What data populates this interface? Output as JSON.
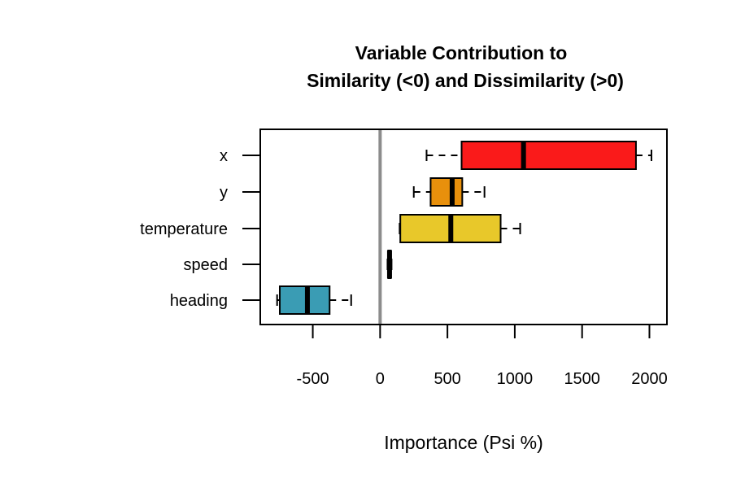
{
  "chart_data": {
    "type": "boxplot",
    "title_lines": [
      "Variable Contribution to",
      "Similarity (<0) and Dissimilarity (>0)"
    ],
    "xlabel": "Importance (Psi %)",
    "ylabel": "",
    "xlim": [
      -890,
      2130
    ],
    "xticks": [
      -500,
      0,
      500,
      1000,
      1500,
      2000
    ],
    "xtick_labels": [
      "-500",
      "0",
      "500",
      "1000",
      "1500",
      "2000"
    ],
    "reference_line": {
      "value": 0,
      "color": "#8c8c8c"
    },
    "grid": false,
    "legend": "none",
    "orientation": "horizontal",
    "boxes": [
      {
        "label": "x",
        "whisker_low": 345,
        "q1": 605,
        "median": 1065,
        "q3": 1900,
        "whisker_high": 2015,
        "color": "#fa1a1a"
      },
      {
        "label": "y",
        "whisker_low": 250,
        "q1": 375,
        "median": 535,
        "q3": 610,
        "whisker_high": 775,
        "color": "#e8900c"
      },
      {
        "label": "temperature",
        "whisker_low": 145,
        "q1": 150,
        "median": 525,
        "q3": 895,
        "whisker_high": 1040,
        "color": "#e8c82a"
      },
      {
        "label": "speed",
        "whisker_low": 55,
        "q1": 60,
        "median": 70,
        "q3": 80,
        "whisker_high": 85,
        "color": "#000000"
      },
      {
        "label": "heading",
        "whisker_low": -765,
        "q1": -745,
        "median": -540,
        "q3": -375,
        "whisker_high": -215,
        "color": "#3a9cb4"
      }
    ]
  }
}
